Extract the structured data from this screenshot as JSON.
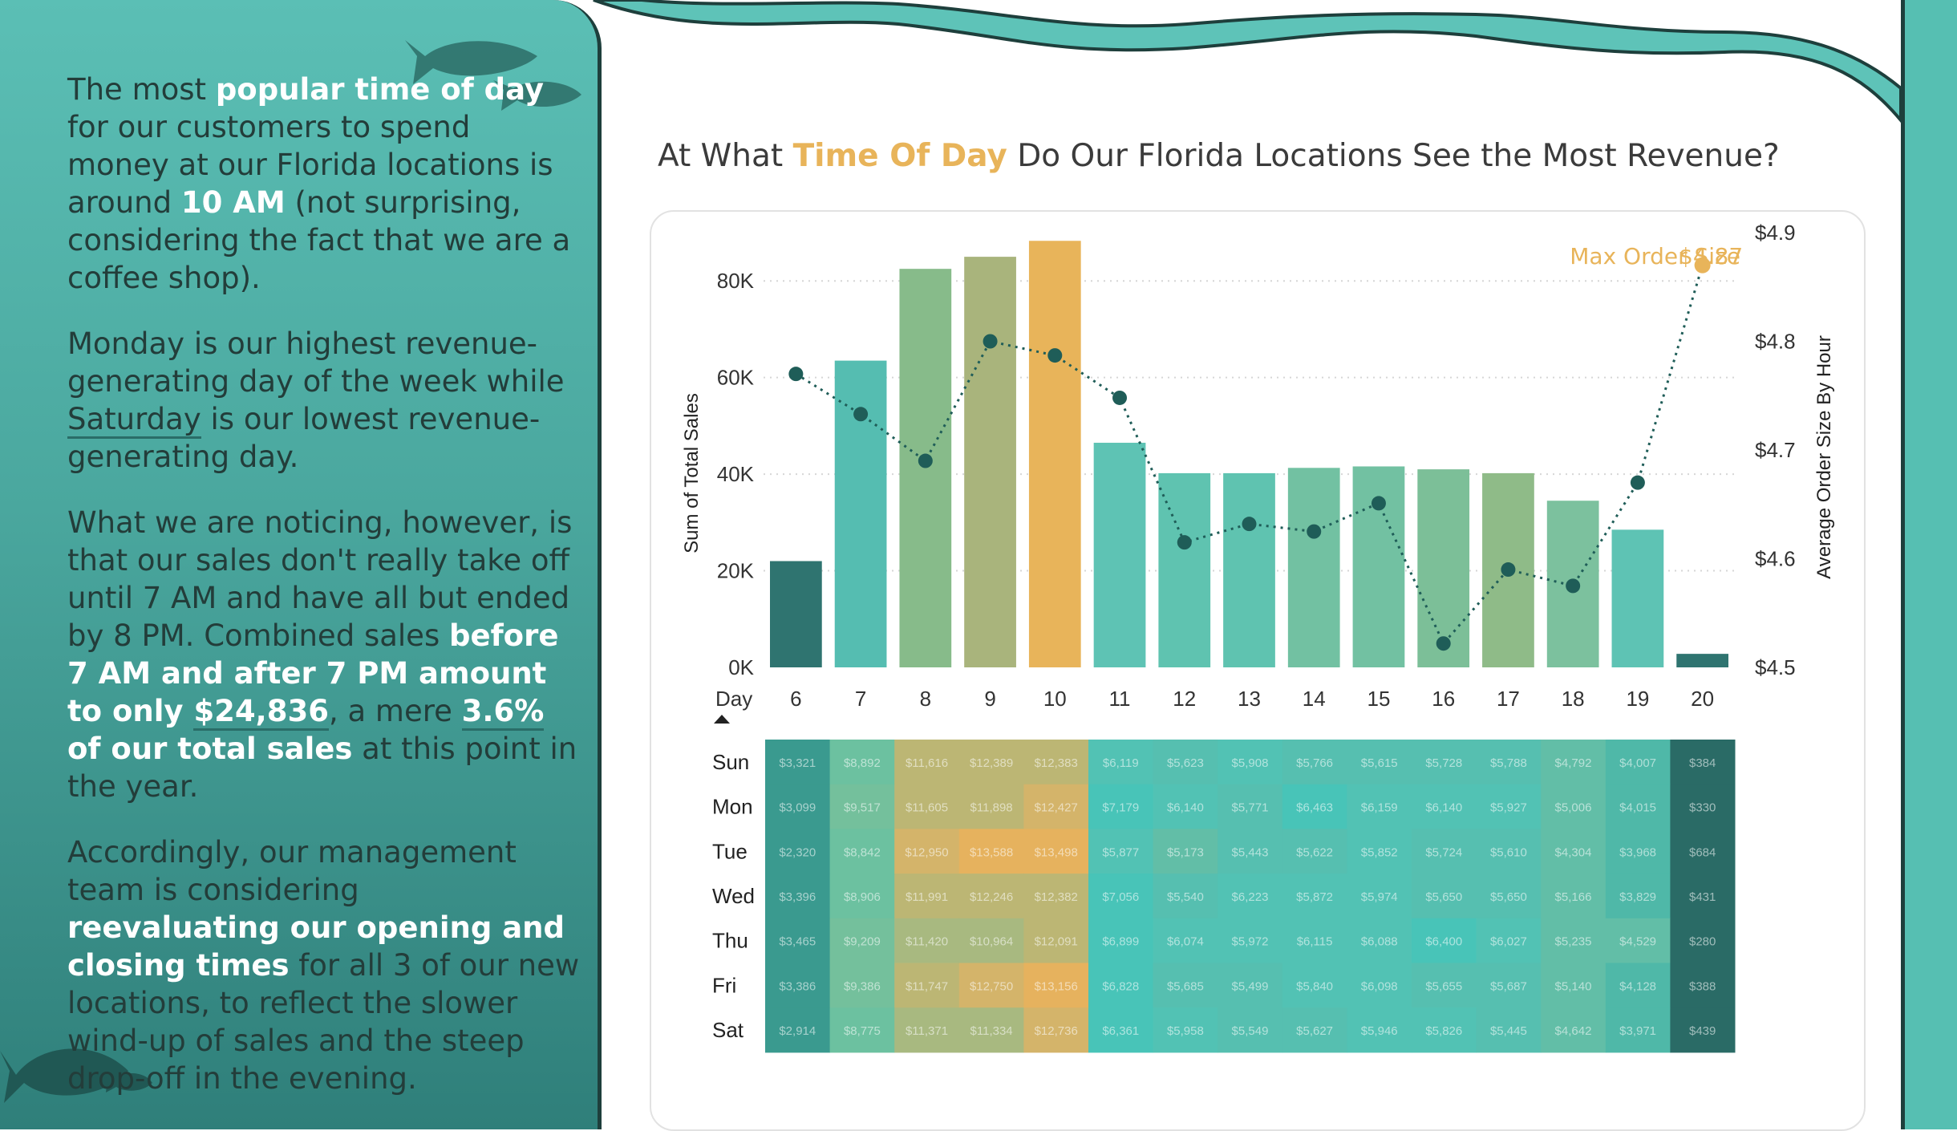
{
  "narrative": {
    "p1": {
      "t1": "The most ",
      "b1": "popular time of day",
      "t2": " for our customers to spend money at our Florida locations is around ",
      "b2": "10 AM",
      "t3": " (not surprising, considering the fact that we are a coffee shop)."
    },
    "p2": {
      "t1": "Monday is our highest revenue-generating day of the week while ",
      "u1": "Saturday",
      "t2": " is our lowest revenue-generating day."
    },
    "p3": {
      "t1": "What we are noticing, however, is that our sales don't really take off until 7 AM and have all but ended by 8 PM. Combined sales ",
      "b1": "before 7 AM and after 7 PM amount to only ",
      "b2": "$24,836",
      "t2": ", a mere ",
      "b3": "3.6%",
      "b4": " of our total sales",
      "t3": " at this point in the year."
    },
    "p4": {
      "t1": "Accordingly, our management team is considering ",
      "b1": "reevaluating our opening and closing times",
      "t2": " for all 3 of our new locations, to reflect the slower wind-up of sales and the steep drop-off in the evening."
    }
  },
  "title": {
    "pre": "At What ",
    "accent": "Time Of Day",
    "post": " Do Our Florida Locations See the Most Revenue?"
  },
  "colors": {
    "accent": "#e8b45a",
    "teal_dark": "#2f7470",
    "teal": "#5ec3b4",
    "green": "#87bb8a",
    "olive": "#a9b47c",
    "panel": "#4aa79e"
  },
  "chart_data": [
    {
      "type": "bar",
      "categories": [
        "6",
        "7",
        "8",
        "9",
        "10",
        "11",
        "12",
        "13",
        "14",
        "15",
        "16",
        "17",
        "18",
        "19",
        "20"
      ],
      "series": [
        {
          "values": [
            22000,
            63500,
            82500,
            85000,
            88300,
            46500,
            40200,
            40200,
            41300,
            41600,
            41000,
            40200,
            34500,
            28500,
            2800
          ]
        },
        {
          "name": "Average Order Size By Hour",
          "axis": "right",
          "style": "dotted-line",
          "values": [
            4.77,
            4.733,
            4.69,
            4.8,
            4.787,
            4.748,
            4.615,
            4.632,
            4.625,
            4.651,
            4.522,
            4.59,
            4.575,
            4.67,
            4.87
          ]
        }
      ],
      "xlabel": "Day",
      "ylabel": "Sum of Total Sales",
      "y2label": "Average Order Size By Hour",
      "ylim": [
        0,
        90000
      ],
      "y2lim": [
        4.5,
        4.9
      ],
      "yticks": [
        "0K",
        "20K",
        "40K",
        "60K",
        "80K"
      ],
      "y2ticks": [
        "$4.5",
        "$4.6",
        "$4.7",
        "$4.8",
        "$4.9"
      ],
      "annotation": {
        "label": "Max Order Size",
        "value": "$4.87"
      },
      "grid": true
    },
    {
      "type": "heatmap",
      "rows": [
        "Sun",
        "Mon",
        "Tue",
        "Wed",
        "Thu",
        "Fri",
        "Sat"
      ],
      "columns": [
        "6",
        "7",
        "8",
        "9",
        "10",
        "11",
        "12",
        "13",
        "14",
        "15",
        "16",
        "17",
        "18",
        "19",
        "20"
      ],
      "cells": [
        [
          "$3,321",
          "$8,892",
          "$11,616",
          "$12,389",
          "$12,383",
          "$6,119",
          "$5,623",
          "$5,908",
          "$5,766",
          "$5,615",
          "$5,728",
          "$5,788",
          "$4,792",
          "$4,007",
          "$384"
        ],
        [
          "$3,099",
          "$9,517",
          "$11,605",
          "$11,898",
          "$12,427",
          "$7,179",
          "$6,140",
          "$5,771",
          "$6,463",
          "$6,159",
          "$6,140",
          "$5,927",
          "$5,006",
          "$4,015",
          "$330"
        ],
        [
          "$2,320",
          "$8,842",
          "$12,950",
          "$13,588",
          "$13,498",
          "$5,877",
          "$5,173",
          "$5,443",
          "$5,622",
          "$5,852",
          "$5,724",
          "$5,610",
          "$4,304",
          "$3,968",
          "$684"
        ],
        [
          "$3,396",
          "$8,906",
          "$11,991",
          "$12,246",
          "$12,382",
          "$7,056",
          "$5,540",
          "$6,223",
          "$5,872",
          "$5,974",
          "$5,650",
          "$5,650",
          "$5,166",
          "$3,829",
          "$431"
        ],
        [
          "$3,465",
          "$9,209",
          "$11,420",
          "$10,964",
          "$12,091",
          "$6,899",
          "$6,074",
          "$5,972",
          "$6,115",
          "$6,088",
          "$6,400",
          "$6,027",
          "$5,235",
          "$4,529",
          "$280"
        ],
        [
          "$3,386",
          "$9,386",
          "$11,747",
          "$12,750",
          "$13,156",
          "$6,828",
          "$5,685",
          "$5,499",
          "$5,840",
          "$6,098",
          "$5,655",
          "$5,687",
          "$5,140",
          "$4,128",
          "$388"
        ],
        [
          "$2,914",
          "$8,775",
          "$11,371",
          "$11,334",
          "$12,736",
          "$6,361",
          "$5,958",
          "$5,549",
          "$5,627",
          "$5,946",
          "$5,826",
          "$5,445",
          "$4,642",
          "$3,971",
          "$439"
        ]
      ]
    }
  ]
}
